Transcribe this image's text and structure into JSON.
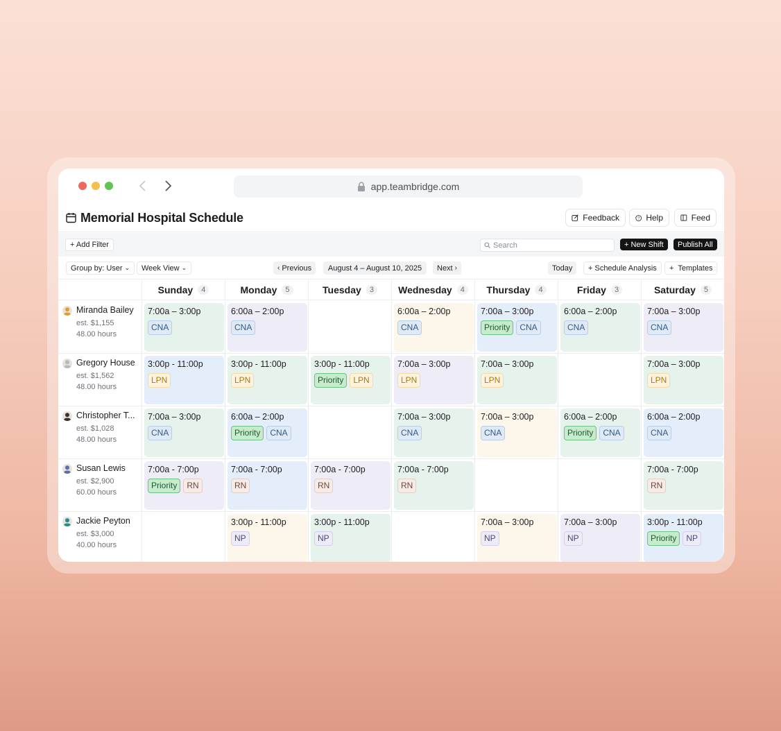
{
  "browser": {
    "url": "app.teambridge.com"
  },
  "header": {
    "title": "Memorial Hospital Schedule",
    "feedback": "Feedback",
    "help": "Help",
    "feed": "Feed"
  },
  "filterbar": {
    "add_filter": "+ Add Filter",
    "search_placeholder": "Search",
    "new_shift": "+ New Shift",
    "publish_all": "Publish All"
  },
  "toolbar": {
    "group_by": "Group by: User",
    "view": "Week View",
    "previous": "Previous",
    "range": "August 4 – August 10, 2025",
    "next": "Next",
    "today": "Today",
    "analysis": "+ Schedule Analysis",
    "templates": "+  Templates"
  },
  "colors": {
    "green": "#e6f2ec",
    "purple": "#eeedf7",
    "blue": "#e4eefa",
    "yellow": "#fdf6ea",
    "priority_bg": "#c6eccd",
    "priority_border": "#6cc183"
  },
  "days": [
    {
      "name": "Sunday",
      "count": "4"
    },
    {
      "name": "Monday",
      "count": "5"
    },
    {
      "name": "Tuesday",
      "count": "3"
    },
    {
      "name": "Wednesday",
      "count": "4"
    },
    {
      "name": "Thursday",
      "count": "4"
    },
    {
      "name": "Friday",
      "count": "3"
    },
    {
      "name": "Saturday",
      "count": "5"
    }
  ],
  "staff": [
    {
      "name": "Miranda Bailey",
      "cost": "est. $1,155",
      "hours": "48.00 hours",
      "avatar_color": "#e0a030",
      "shifts": [
        {
          "time": "7:00a – 3:00p",
          "bg": "green",
          "tags": [
            "CNA"
          ]
        },
        {
          "time": "6:00a – 2:00p",
          "bg": "purple",
          "tags": [
            "CNA"
          ]
        },
        null,
        {
          "time": "6:00a – 2:00p",
          "bg": "yellow",
          "tags": [
            "CNA"
          ]
        },
        {
          "time": "7:00a – 3:00p",
          "bg": "blue",
          "tags": [
            "Priority",
            "CNA"
          ]
        },
        {
          "time": "6:00a – 2:00p",
          "bg": "green",
          "tags": [
            "CNA"
          ]
        },
        {
          "time": "7:00a – 3:00p",
          "bg": "purple",
          "tags": [
            "CNA"
          ]
        }
      ]
    },
    {
      "name": "Gregory House",
      "cost": "est. $1,562",
      "hours": "48.00 hours",
      "avatar_color": "#b7b9bd",
      "shifts": [
        {
          "time": "3:00p - 11:00p",
          "bg": "blue",
          "tags": [
            "LPN"
          ]
        },
        {
          "time": "3:00p - 11:00p",
          "bg": "green",
          "tags": [
            "LPN"
          ]
        },
        {
          "time": "3:00p - 11:00p",
          "bg": "green",
          "tags": [
            "Priority",
            "LPN"
          ]
        },
        {
          "time": "7:00a – 3:00p",
          "bg": "purple",
          "tags": [
            "LPN"
          ]
        },
        {
          "time": "7:00a – 3:00p",
          "bg": "green",
          "tags": [
            "LPN"
          ]
        },
        null,
        {
          "time": "7:00a – 3:00p",
          "bg": "green",
          "tags": [
            "LPN"
          ]
        }
      ]
    },
    {
      "name": "Christopher T...",
      "cost": "est. $1,028",
      "hours": "48.00 hours",
      "avatar_color": "#3a3230",
      "shifts": [
        {
          "time": "7:00a – 3:00p",
          "bg": "green",
          "tags": [
            "CNA"
          ]
        },
        {
          "time": "6:00a – 2:00p",
          "bg": "blue",
          "tags": [
            "Priority",
            "CNA"
          ]
        },
        null,
        {
          "time": "7:00a – 3:00p",
          "bg": "green",
          "tags": [
            "CNA"
          ]
        },
        {
          "time": "7:00a – 3:00p",
          "bg": "yellow",
          "tags": [
            "CNA"
          ]
        },
        {
          "time": "6:00a – 2:00p",
          "bg": "green",
          "tags": [
            "Priority",
            "CNA"
          ]
        },
        {
          "time": "6:00a – 2:00p",
          "bg": "blue",
          "tags": [
            "CNA"
          ]
        }
      ]
    },
    {
      "name": "Susan Lewis",
      "cost": "est. $2,900",
      "hours": "60.00 hours",
      "avatar_color": "#5b6fa8",
      "shifts": [
        {
          "time": "7:00a - 7:00p",
          "bg": "purple",
          "tags": [
            "Priority",
            "RN"
          ]
        },
        {
          "time": "7:00a - 7:00p",
          "bg": "blue",
          "tags": [
            "RN"
          ]
        },
        {
          "time": "7:00a - 7:00p",
          "bg": "purple",
          "tags": [
            "RN"
          ]
        },
        {
          "time": "7:00a - 7:00p",
          "bg": "green",
          "tags": [
            "RN"
          ]
        },
        null,
        null,
        {
          "time": "7:00a - 7:00p",
          "bg": "green",
          "tags": [
            "RN"
          ]
        }
      ]
    },
    {
      "name": "Jackie Peyton",
      "cost": "est. $3,000",
      "hours": "40.00 hours",
      "avatar_color": "#2b8a8a",
      "shifts": [
        null,
        {
          "time": "3:00p - 11:00p",
          "bg": "yellow",
          "tags": [
            "NP"
          ]
        },
        {
          "time": "3:00p - 11:00p",
          "bg": "green",
          "tags": [
            "NP"
          ]
        },
        null,
        {
          "time": "7:00a – 3:00p",
          "bg": "yellow",
          "tags": [
            "NP"
          ]
        },
        {
          "time": "7:00a – 3:00p",
          "bg": "purple",
          "tags": [
            "NP"
          ]
        },
        {
          "time": "3:00p - 11:00p",
          "bg": "blue",
          "tags": [
            "Priority",
            "NP"
          ]
        }
      ]
    }
  ]
}
